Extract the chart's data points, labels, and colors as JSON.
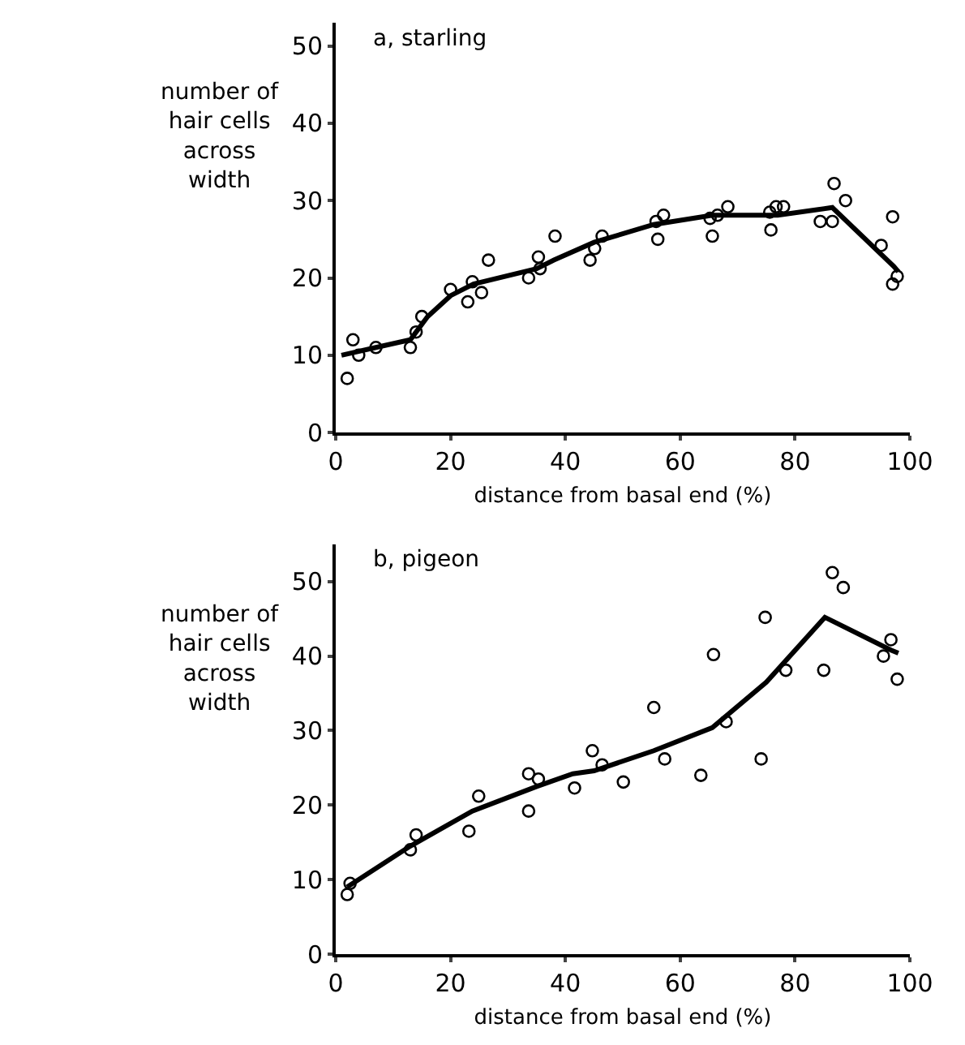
{
  "chart_data": [
    {
      "type": "scatter",
      "title": "a, starling",
      "xlabel": "distance from basal end (%)",
      "ylabel": "number of hair cells across width",
      "xlim": [
        0,
        100
      ],
      "ylim": [
        0,
        53
      ],
      "xticks": [
        0,
        20,
        40,
        60,
        80,
        100
      ],
      "yticks": [
        0,
        10,
        20,
        30,
        40,
        50
      ],
      "grid": false,
      "series": [
        {
          "type": "scatter",
          "marker": "circle",
          "color": "#000000",
          "x": [
            2,
            3,
            4,
            7,
            13,
            14,
            15,
            20,
            23,
            23.8,
            25.4,
            26.6,
            33.6,
            35.3,
            35.6,
            38.2,
            44.3,
            45.1,
            46.4,
            55.8,
            56.1,
            57.1,
            65.2,
            65.6,
            66.5,
            68.3,
            75.6,
            75.8,
            76.7,
            78,
            84.4,
            86.5,
            86.8,
            88.8,
            95,
            97,
            97,
            97.8
          ],
          "values": [
            7,
            12,
            10,
            11,
            11,
            13,
            15,
            18.5,
            16.9,
            19.5,
            18.1,
            22.3,
            20,
            22.7,
            21.2,
            25.4,
            22.3,
            23.8,
            25.4,
            27.3,
            25,
            28.1,
            27.7,
            25.4,
            28.1,
            29.2,
            28.5,
            26.2,
            29.2,
            29.2,
            27.3,
            27.3,
            32.2,
            30,
            24.2,
            27.9,
            19.2,
            20.2
          ]
        },
        {
          "type": "line",
          "marker": "none",
          "line_style": "solid",
          "color": "#000000",
          "x": [
            1,
            7,
            13,
            16,
            20,
            24,
            35,
            38,
            45,
            55.4,
            65.6,
            77,
            86.5,
            97.2,
            98
          ],
          "values": [
            10,
            11,
            12,
            15,
            17.7,
            19.2,
            21.2,
            22.3,
            24.6,
            26.9,
            28.1,
            28.1,
            29.1,
            21.5,
            20.8
          ]
        }
      ]
    },
    {
      "type": "scatter",
      "title": "b, pigeon",
      "xlabel": "distance from basal end (%)",
      "ylabel": "number of hair cells across width",
      "xlim": [
        0,
        100
      ],
      "ylim": [
        0,
        55
      ],
      "xticks": [
        0,
        20,
        40,
        60,
        80,
        100
      ],
      "yticks": [
        0,
        10,
        20,
        30,
        40,
        50
      ],
      "grid": false,
      "series": [
        {
          "type": "scatter",
          "marker": "circle",
          "color": "#000000",
          "x": [
            2,
            2.5,
            13,
            14,
            23.2,
            24.9,
            33.6,
            33.6,
            35.3,
            41.6,
            44.7,
            46.4,
            50.1,
            55.4,
            57.3,
            63.6,
            65.8,
            68,
            74.1,
            74.8,
            78.4,
            85,
            86.5,
            88.4,
            95.4,
            96.7,
            97.8
          ],
          "values": [
            8,
            9.5,
            14,
            16,
            16.5,
            21.2,
            24.2,
            19.2,
            23.5,
            22.3,
            27.3,
            25.4,
            23.1,
            33.1,
            26.2,
            24,
            40.2,
            31.2,
            26.2,
            45.2,
            38.1,
            38.1,
            51.2,
            49.2,
            40,
            42.2,
            36.9
          ]
        },
        {
          "type": "line",
          "marker": "none",
          "line_style": "solid",
          "color": "#000000",
          "x": [
            2,
            13,
            23.8,
            35,
            41.3,
            45,
            55.4,
            65.6,
            75,
            85.2,
            96.7,
            98
          ],
          "values": [
            9,
            14.5,
            19.2,
            22.5,
            24.2,
            24.6,
            27.3,
            30.4,
            36.5,
            45.2,
            40.8,
            40.4
          ]
        }
      ]
    }
  ]
}
